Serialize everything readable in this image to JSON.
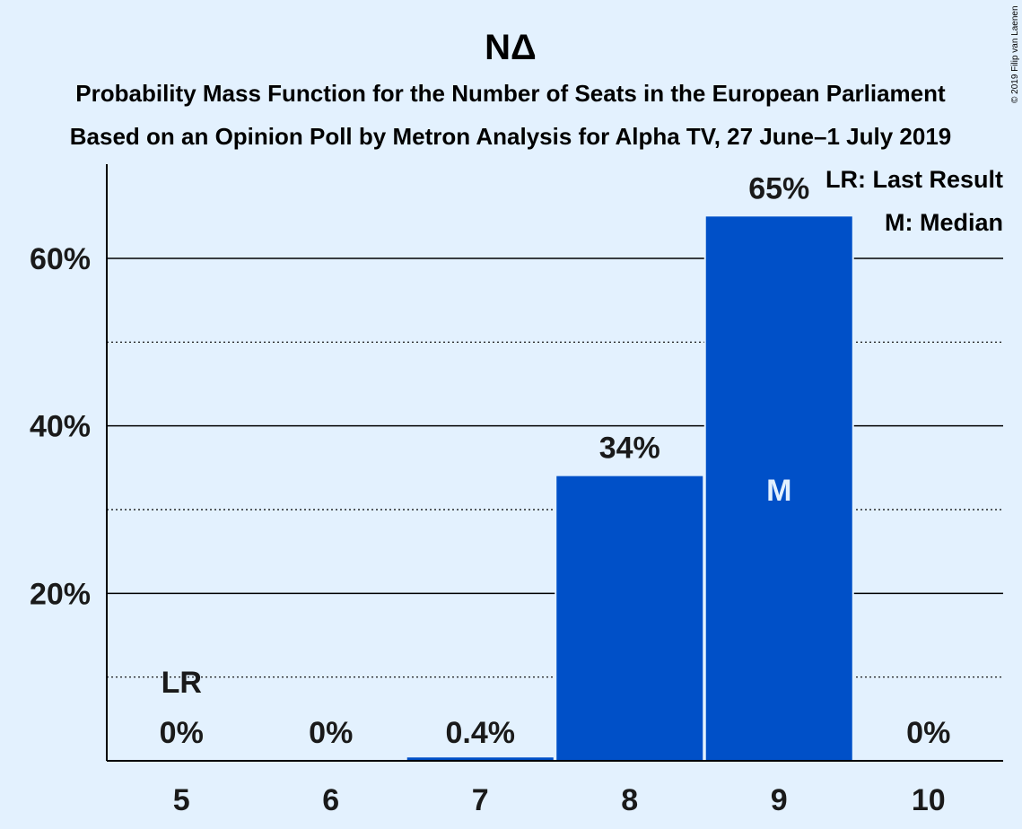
{
  "chart_data": {
    "type": "bar",
    "title": "NΔ",
    "subtitle_lines": [
      "Probability Mass Function for the Number of Seats in the European Parliament",
      "Based on an Opinion Poll by Metron Analysis for Alpha TV, 27 June–1 July 2019"
    ],
    "categories": [
      "5",
      "6",
      "7",
      "8",
      "9",
      "10"
    ],
    "values": [
      0,
      0,
      0.4,
      34,
      65,
      0
    ],
    "value_labels": [
      "0%",
      "0%",
      "0.4%",
      "34%",
      "65%",
      "0%"
    ],
    "precise_values": [
      0,
      0,
      0.4,
      34.2,
      65.4,
      0
    ],
    "ylim": [
      0,
      70
    ],
    "y_ticks": [
      {
        "value": 20,
        "label": "20%"
      },
      {
        "value": 40,
        "label": "40%"
      },
      {
        "value": 60,
        "label": "60%"
      }
    ],
    "minor_gridlines": [
      10,
      30,
      50
    ],
    "last_result_category": "5",
    "last_result_marker": "LR",
    "median_category": "9",
    "median_marker": "M",
    "legend": [
      "LR: Last Result",
      "M: Median"
    ],
    "legend_position": "top-right",
    "copyright": "© 2019 Filip van Laenen",
    "colors": {
      "background": "#e3f1fe",
      "bar": "#0050c8",
      "text": "#1a1a1a",
      "median_text": "#e3f1fe"
    }
  }
}
